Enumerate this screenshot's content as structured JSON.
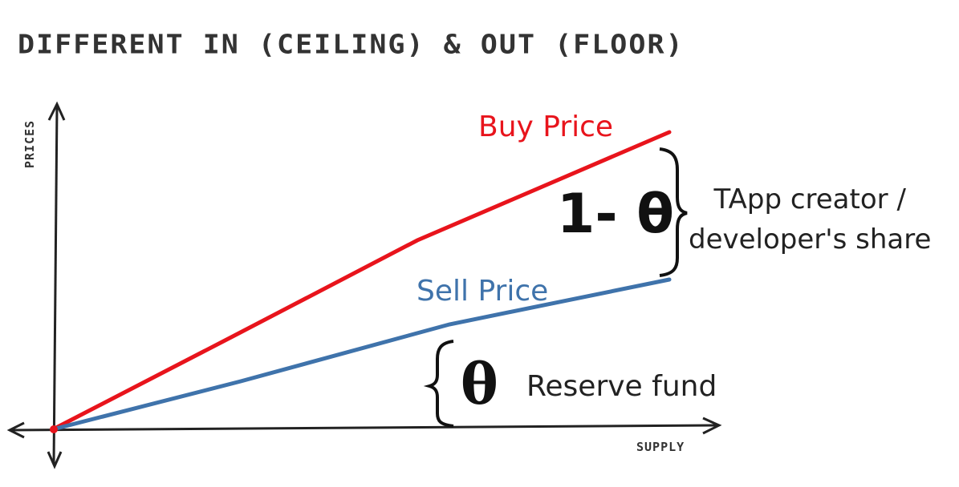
{
  "title": "DIFFERENT IN (CEILING) & OUT (FLOOR)",
  "axes": {
    "x_label": "SUPPLY",
    "y_label": "PRICES"
  },
  "lines": {
    "buy": {
      "label": "Buy Price",
      "color": "#e8141c"
    },
    "sell": {
      "label": "Sell Price",
      "color": "#3f73ab"
    }
  },
  "annotations": {
    "top_share": "1- θ",
    "top_label_line1": "TApp creator /",
    "top_label_line2": "developer's share",
    "bottom_share": "θ",
    "bottom_label": "Reserve fund"
  },
  "icons": {
    "brace": "curly-brace-icon",
    "arrow": "arrowhead-icon"
  }
}
